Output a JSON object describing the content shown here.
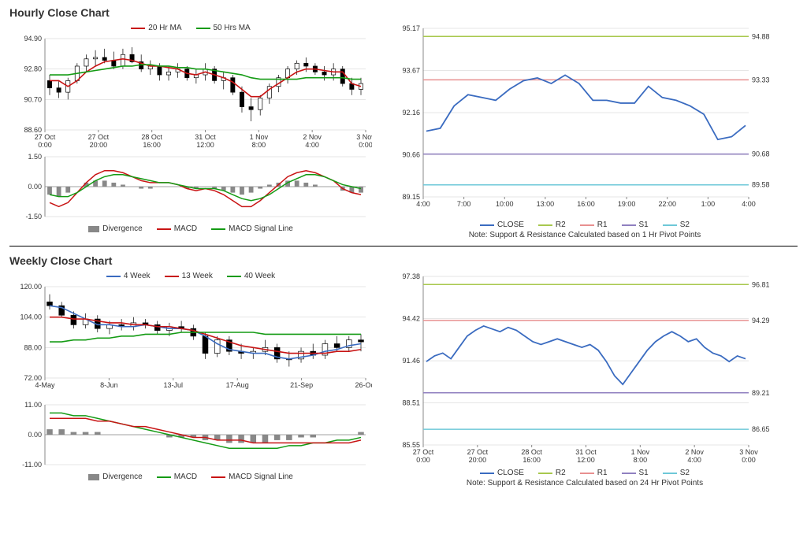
{
  "hourly": {
    "title": "Hourly Close Chart",
    "main": {
      "legend": [
        {
          "label": "20 Hr MA",
          "color": "#c81414"
        },
        {
          "label": "50 Hrs MA",
          "color": "#149b14"
        }
      ],
      "ylim": [
        88.6,
        94.9
      ],
      "yticks": [
        88.6,
        90.7,
        92.8,
        94.9
      ],
      "xticks": [
        "27 Oct 0:00",
        "27 Oct 20:00",
        "28 Oct 16:00",
        "31 Oct 12:00",
        "1 Nov 8:00",
        "2 Nov 4:00",
        "3 Nov 0:00"
      ],
      "ma20_color": "#c81414",
      "ma50_color": "#149b14",
      "ma20": [
        92.0,
        92.0,
        91.6,
        92.0,
        92.6,
        93.0,
        93.3,
        93.4,
        93.5,
        93.4,
        93.2,
        93.0,
        93.0,
        92.9,
        92.8,
        92.5,
        92.4,
        92.6,
        92.4,
        92.2,
        91.9,
        91.4,
        90.9,
        90.9,
        91.4,
        91.8,
        92.2,
        92.6,
        92.8,
        92.8,
        92.7,
        92.6,
        92.6,
        91.8,
        91.6
      ],
      "ma50": [
        92.4,
        92.4,
        92.4,
        92.5,
        92.6,
        92.7,
        92.8,
        92.9,
        93.0,
        93.0,
        93.1,
        93.1,
        93.0,
        93.0,
        92.9,
        92.9,
        92.8,
        92.8,
        92.7,
        92.6,
        92.5,
        92.4,
        92.2,
        92.1,
        92.1,
        92.1,
        92.1,
        92.1,
        92.2,
        92.2,
        92.2,
        92.2,
        92.2,
        92.1,
        92.1
      ],
      "candles": [
        {
          "o": 92.0,
          "h": 92.4,
          "l": 91.0,
          "c": 91.5
        },
        {
          "o": 91.5,
          "h": 92.0,
          "l": 90.8,
          "c": 91.2
        },
        {
          "o": 91.2,
          "h": 92.2,
          "l": 90.7,
          "c": 92.0
        },
        {
          "o": 92.0,
          "h": 93.2,
          "l": 91.8,
          "c": 93.0
        },
        {
          "o": 93.0,
          "h": 93.8,
          "l": 92.6,
          "c": 93.5
        },
        {
          "o": 93.5,
          "h": 94.1,
          "l": 93.0,
          "c": 93.6
        },
        {
          "o": 93.6,
          "h": 94.2,
          "l": 93.2,
          "c": 93.4
        },
        {
          "o": 93.4,
          "h": 94.0,
          "l": 92.8,
          "c": 93.0
        },
        {
          "o": 93.0,
          "h": 94.2,
          "l": 92.8,
          "c": 93.8
        },
        {
          "o": 93.8,
          "h": 94.3,
          "l": 93.2,
          "c": 93.3
        },
        {
          "o": 93.3,
          "h": 93.8,
          "l": 92.6,
          "c": 92.8
        },
        {
          "o": 92.8,
          "h": 93.4,
          "l": 92.4,
          "c": 93.0
        },
        {
          "o": 93.0,
          "h": 93.2,
          "l": 92.0,
          "c": 92.4
        },
        {
          "o": 92.4,
          "h": 93.0,
          "l": 92.0,
          "c": 92.6
        },
        {
          "o": 92.6,
          "h": 93.2,
          "l": 92.2,
          "c": 92.8
        },
        {
          "o": 92.8,
          "h": 93.0,
          "l": 92.0,
          "c": 92.2
        },
        {
          "o": 92.2,
          "h": 92.8,
          "l": 91.8,
          "c": 92.4
        },
        {
          "o": 92.4,
          "h": 93.2,
          "l": 92.0,
          "c": 92.8
        },
        {
          "o": 92.8,
          "h": 93.0,
          "l": 91.8,
          "c": 92.0
        },
        {
          "o": 92.0,
          "h": 92.6,
          "l": 91.4,
          "c": 92.2
        },
        {
          "o": 92.2,
          "h": 92.4,
          "l": 91.0,
          "c": 91.2
        },
        {
          "o": 91.2,
          "h": 91.6,
          "l": 89.8,
          "c": 90.2
        },
        {
          "o": 90.2,
          "h": 90.8,
          "l": 89.2,
          "c": 90.0
        },
        {
          "o": 90.0,
          "h": 91.0,
          "l": 89.6,
          "c": 90.8
        },
        {
          "o": 90.8,
          "h": 91.8,
          "l": 90.4,
          "c": 91.6
        },
        {
          "o": 91.6,
          "h": 92.4,
          "l": 91.2,
          "c": 92.2
        },
        {
          "o": 92.2,
          "h": 93.0,
          "l": 91.8,
          "c": 92.8
        },
        {
          "o": 92.8,
          "h": 93.4,
          "l": 92.4,
          "c": 93.2
        },
        {
          "o": 93.2,
          "h": 93.6,
          "l": 92.6,
          "c": 93.0
        },
        {
          "o": 93.0,
          "h": 93.2,
          "l": 92.4,
          "c": 92.6
        },
        {
          "o": 92.6,
          "h": 93.0,
          "l": 92.0,
          "c": 92.4
        },
        {
          "o": 92.4,
          "h": 93.2,
          "l": 92.0,
          "c": 92.8
        },
        {
          "o": 92.8,
          "h": 93.0,
          "l": 91.6,
          "c": 91.8
        },
        {
          "o": 91.8,
          "h": 92.2,
          "l": 91.0,
          "c": 91.4
        },
        {
          "o": 91.4,
          "h": 92.2,
          "l": 91.0,
          "c": 91.8
        }
      ]
    },
    "osc": {
      "legend": [
        {
          "label": "Divergence",
          "color": "#888888",
          "type": "bar"
        },
        {
          "label": "MACD",
          "color": "#c81414"
        },
        {
          "label": "MACD Signal Line",
          "color": "#149b14"
        }
      ],
      "ylim": [
        -1.5,
        1.5
      ],
      "yticks": [
        -1.5,
        0.0,
        1.5
      ],
      "div_color": "#888888",
      "macd_color": "#c81414",
      "signal_color": "#149b14",
      "divergence": [
        -0.4,
        -0.5,
        -0.3,
        0.0,
        0.2,
        0.3,
        0.3,
        0.2,
        0.1,
        0.0,
        -0.1,
        -0.1,
        0.0,
        0.0,
        0.0,
        -0.1,
        -0.1,
        0.0,
        -0.1,
        -0.2,
        -0.3,
        -0.4,
        -0.3,
        -0.1,
        0.1,
        0.2,
        0.3,
        0.3,
        0.2,
        0.1,
        0.0,
        0.0,
        -0.2,
        -0.3,
        -0.3
      ],
      "macd": [
        -0.8,
        -1.0,
        -0.8,
        -0.3,
        0.2,
        0.6,
        0.8,
        0.8,
        0.7,
        0.5,
        0.3,
        0.2,
        0.2,
        0.2,
        0.1,
        -0.1,
        -0.2,
        -0.1,
        -0.2,
        -0.4,
        -0.7,
        -1.0,
        -1.0,
        -0.7,
        -0.3,
        0.1,
        0.5,
        0.7,
        0.8,
        0.7,
        0.5,
        0.3,
        -0.1,
        -0.3,
        -0.4
      ],
      "signal": [
        -0.4,
        -0.5,
        -0.5,
        -0.3,
        0.0,
        0.3,
        0.5,
        0.6,
        0.6,
        0.5,
        0.4,
        0.3,
        0.2,
        0.2,
        0.1,
        0.0,
        -0.1,
        -0.1,
        -0.1,
        -0.2,
        -0.4,
        -0.6,
        -0.7,
        -0.6,
        -0.4,
        -0.1,
        0.2,
        0.4,
        0.6,
        0.6,
        0.5,
        0.3,
        0.1,
        0.0,
        -0.1
      ]
    },
    "pivot": {
      "ylim": [
        89.15,
        95.17
      ],
      "yticks": [
        89.15,
        90.66,
        92.16,
        93.67,
        95.17
      ],
      "xticks": [
        "4:00",
        "7:00",
        "10:00",
        "13:00",
        "16:00",
        "19:00",
        "22:00",
        "1:00",
        "4:00"
      ],
      "levels": [
        {
          "name": "R2",
          "val": 94.88,
          "color": "#a8c84e"
        },
        {
          "name": "R1",
          "val": 93.33,
          "color": "#e89090"
        },
        {
          "name": "S1",
          "val": 90.68,
          "color": "#9080c0"
        },
        {
          "name": "S2",
          "val": 89.58,
          "color": "#6ec8d8"
        }
      ],
      "close_color": "#3a6bc0",
      "close": [
        91.5,
        91.6,
        92.4,
        92.8,
        92.7,
        92.6,
        93.0,
        93.3,
        93.4,
        93.2,
        93.5,
        93.2,
        92.6,
        92.6,
        92.5,
        92.5,
        93.1,
        92.7,
        92.6,
        92.4,
        92.1,
        91.2,
        91.3,
        91.7
      ],
      "legend": [
        {
          "label": "CLOSE",
          "color": "#3a6bc0"
        },
        {
          "label": "R2",
          "color": "#a8c84e"
        },
        {
          "label": "R1",
          "color": "#e89090"
        },
        {
          "label": "S1",
          "color": "#9080c0"
        },
        {
          "label": "S2",
          "color": "#6ec8d8"
        }
      ],
      "note": "Note: Support & Resistance Calculated based on 1 Hr Pivot Points"
    }
  },
  "weekly": {
    "title": "Weekly Close Chart",
    "main": {
      "legend": [
        {
          "label": "4 Week",
          "color": "#3a6bc0"
        },
        {
          "label": "13 Week",
          "color": "#c81414"
        },
        {
          "label": "40 Week",
          "color": "#149b14"
        }
      ],
      "ylim": [
        72,
        120
      ],
      "yticks": [
        72,
        88,
        104,
        120
      ],
      "xticks": [
        "4-May",
        "8-Jun",
        "13-Jul",
        "17-Aug",
        "21-Sep",
        "26-Oct"
      ],
      "ma4_color": "#3a6bc0",
      "ma13_color": "#c81414",
      "ma40_color": "#149b14",
      "ma4": [
        110,
        109,
        106,
        103,
        100,
        100,
        99,
        99,
        100,
        99,
        98,
        98,
        97,
        94,
        90,
        87,
        86,
        85,
        85,
        83,
        82,
        83,
        84,
        86,
        87,
        89,
        90
      ],
      "ma13": [
        104,
        104,
        103,
        103,
        102,
        101,
        101,
        100,
        100,
        99,
        99,
        98,
        97,
        95,
        93,
        91,
        89,
        88,
        87,
        86,
        85,
        85,
        85,
        85,
        86,
        86,
        87
      ],
      "ma40": [
        91,
        91,
        92,
        92,
        93,
        93,
        94,
        94,
        95,
        95,
        95,
        96,
        96,
        96,
        96,
        96,
        96,
        96,
        95,
        95,
        95,
        95,
        95,
        95,
        95,
        95,
        95
      ],
      "candles": [
        {
          "o": 112,
          "h": 116,
          "l": 108,
          "c": 110
        },
        {
          "o": 110,
          "h": 112,
          "l": 104,
          "c": 105
        },
        {
          "o": 105,
          "h": 107,
          "l": 98,
          "c": 100
        },
        {
          "o": 100,
          "h": 106,
          "l": 98,
          "c": 103
        },
        {
          "o": 103,
          "h": 105,
          "l": 96,
          "c": 98
        },
        {
          "o": 98,
          "h": 102,
          "l": 95,
          "c": 100
        },
        {
          "o": 100,
          "h": 103,
          "l": 97,
          "c": 99
        },
        {
          "o": 99,
          "h": 104,
          "l": 97,
          "c": 101
        },
        {
          "o": 101,
          "h": 103,
          "l": 98,
          "c": 100
        },
        {
          "o": 100,
          "h": 102,
          "l": 95,
          "c": 97
        },
        {
          "o": 97,
          "h": 101,
          "l": 94,
          "c": 99
        },
        {
          "o": 99,
          "h": 102,
          "l": 96,
          "c": 98
        },
        {
          "o": 98,
          "h": 100,
          "l": 92,
          "c": 94
        },
        {
          "o": 94,
          "h": 96,
          "l": 82,
          "c": 85
        },
        {
          "o": 85,
          "h": 94,
          "l": 83,
          "c": 92
        },
        {
          "o": 92,
          "h": 94,
          "l": 84,
          "c": 86
        },
        {
          "o": 86,
          "h": 90,
          "l": 82,
          "c": 85
        },
        {
          "o": 85,
          "h": 88,
          "l": 82,
          "c": 86
        },
        {
          "o": 86,
          "h": 92,
          "l": 84,
          "c": 88
        },
        {
          "o": 88,
          "h": 90,
          "l": 80,
          "c": 82
        },
        {
          "o": 82,
          "h": 86,
          "l": 78,
          "c": 82
        },
        {
          "o": 82,
          "h": 88,
          "l": 80,
          "c": 86
        },
        {
          "o": 86,
          "h": 90,
          "l": 82,
          "c": 84
        },
        {
          "o": 84,
          "h": 92,
          "l": 82,
          "c": 90
        },
        {
          "o": 90,
          "h": 94,
          "l": 86,
          "c": 88
        },
        {
          "o": 88,
          "h": 94,
          "l": 86,
          "c": 92
        },
        {
          "o": 92,
          "h": 95,
          "l": 86,
          "c": 91
        }
      ]
    },
    "osc": {
      "legend": [
        {
          "label": "Divergence",
          "color": "#888888",
          "type": "bar"
        },
        {
          "label": "MACD",
          "color": "#149b14"
        },
        {
          "label": "MACD Signal Line",
          "color": "#c81414"
        }
      ],
      "ylim": [
        -11,
        11
      ],
      "yticks": [
        -11,
        0,
        11
      ],
      "div_color": "#888888",
      "macd_color": "#149b14",
      "signal_color": "#c81414",
      "divergence": [
        2,
        2,
        1,
        1,
        1,
        0,
        0,
        0,
        0,
        0,
        -1,
        -1,
        -1,
        -2,
        -2,
        -3,
        -3,
        -3,
        -3,
        -2,
        -2,
        -1,
        -1,
        0,
        0,
        0,
        1
      ],
      "macd": [
        8,
        8,
        7,
        7,
        6,
        5,
        4,
        3,
        2,
        1,
        0,
        -1,
        -2,
        -3,
        -4,
        -5,
        -5,
        -5,
        -5,
        -5,
        -4,
        -4,
        -3,
        -3,
        -2,
        -2,
        -1
      ],
      "signal": [
        6,
        6,
        6,
        6,
        5,
        5,
        4,
        3,
        3,
        2,
        1,
        0,
        -1,
        -1,
        -2,
        -2,
        -2,
        -3,
        -3,
        -3,
        -3,
        -3,
        -3,
        -3,
        -3,
        -3,
        -2
      ]
    },
    "pivot": {
      "ylim": [
        85.55,
        97.38
      ],
      "yticks": [
        85.55,
        88.51,
        91.46,
        94.42,
        97.38
      ],
      "xticks": [
        "27 Oct 0:00",
        "27 Oct 20:00",
        "28 Oct 16:00",
        "31 Oct 12:00",
        "1 Nov 8:00",
        "2 Nov 4:00",
        "3 Nov 0:00"
      ],
      "levels": [
        {
          "name": "R2",
          "val": 96.81,
          "color": "#a8c84e"
        },
        {
          "name": "R1",
          "val": 94.29,
          "color": "#e89090"
        },
        {
          "name": "S1",
          "val": 89.21,
          "color": "#9080c0"
        },
        {
          "name": "S2",
          "val": 86.65,
          "color": "#6ec8d8"
        }
      ],
      "close_color": "#3a6bc0",
      "close": [
        91.4,
        91.8,
        92.0,
        91.6,
        92.4,
        93.2,
        93.6,
        93.9,
        93.7,
        93.5,
        93.8,
        93.6,
        93.2,
        92.8,
        92.6,
        92.8,
        93.0,
        92.8,
        92.6,
        92.4,
        92.6,
        92.2,
        91.4,
        90.4,
        89.8,
        90.6,
        91.4,
        92.2,
        92.8,
        93.2,
        93.5,
        93.2,
        92.8,
        93.0,
        92.4,
        92.0,
        91.8,
        91.4,
        91.8,
        91.6
      ],
      "legend": [
        {
          "label": "CLOSE",
          "color": "#3a6bc0"
        },
        {
          "label": "R2",
          "color": "#a8c84e"
        },
        {
          "label": "R1",
          "color": "#e89090"
        },
        {
          "label": "S1",
          "color": "#9080c0"
        },
        {
          "label": "S2",
          "color": "#6ec8d8"
        }
      ],
      "note": "Note:  Support & Resistance Calculated based on 24 Hr Pivot Points"
    }
  },
  "style": {
    "grid_color": "#cccccc",
    "axis_color": "#888888",
    "label_fontsize": 9
  }
}
